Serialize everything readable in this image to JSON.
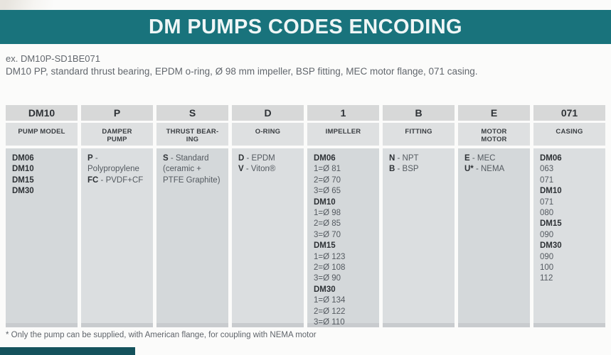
{
  "title": "DM PUMPS CODES ENCODING",
  "intro": {
    "example_code": "ex. DM10P-SD1BE071",
    "example_description": "DM10 PP, standard thrust bearing, EPDM o-ring, Ø 98 mm impeller, BSP fitting, MEC motor flange, 071 casing."
  },
  "table": {
    "columns": [
      {
        "code": "DM10",
        "label": "PUMP MODEL",
        "items": [
          [
            "DM06",
            ""
          ],
          [
            "DM10",
            ""
          ],
          [
            "DM15",
            ""
          ],
          [
            "DM30",
            ""
          ]
        ]
      },
      {
        "code": "P",
        "label": "DAMPER\nPUMP",
        "items": [
          [
            "P",
            "- Polypropylene"
          ],
          [
            "FC",
            "- PVDF+CF"
          ]
        ]
      },
      {
        "code": "S",
        "label": "THRUST BEAR-\nING",
        "items": [
          [
            "S",
            "- Standard"
          ],
          [
            "",
            "(ceramic +"
          ],
          [
            "",
            "PTFE Graphite)"
          ]
        ]
      },
      {
        "code": "D",
        "label": "O-RING",
        "items": [
          [
            "D",
            "- EPDM"
          ],
          [
            "V",
            "- Viton®"
          ]
        ]
      },
      {
        "code": "1",
        "label": "IMPELLER",
        "items": [
          [
            "DM06",
            ""
          ],
          [
            "",
            "1=Ø 81"
          ],
          [
            "",
            "2=Ø 70"
          ],
          [
            "",
            "3=Ø 65"
          ],
          [
            "DM10",
            ""
          ],
          [
            "",
            "1=Ø 98"
          ],
          [
            "",
            "2=Ø 85"
          ],
          [
            "",
            "3=Ø 70"
          ],
          [
            "DM15",
            ""
          ],
          [
            "",
            "1=Ø 123"
          ],
          [
            "",
            "2=Ø 108"
          ],
          [
            "",
            "3=Ø 90"
          ],
          [
            "DM30",
            ""
          ],
          [
            "",
            "1=Ø 134"
          ],
          [
            "",
            "2=Ø 122"
          ],
          [
            "",
            "3=Ø 110"
          ]
        ]
      },
      {
        "code": "B",
        "label": "FITTING",
        "items": [
          [
            "N",
            "- NPT"
          ],
          [
            "B",
            "- BSP"
          ]
        ]
      },
      {
        "code": "E",
        "label": "MOTOR\nMOTOR",
        "items": [
          [
            "E",
            "- MEC"
          ],
          [
            "U*",
            "- NEMA"
          ]
        ]
      },
      {
        "code": "071",
        "label": "CASING",
        "items": [
          [
            "DM06",
            ""
          ],
          [
            "",
            "063"
          ],
          [
            "",
            "071"
          ],
          [
            "DM10",
            ""
          ],
          [
            "",
            "071"
          ],
          [
            "",
            "080"
          ],
          [
            "DM15",
            ""
          ],
          [
            "",
            "090"
          ],
          [
            "DM30",
            ""
          ],
          [
            "",
            "090"
          ],
          [
            "",
            "100"
          ],
          [
            "",
            "112"
          ]
        ]
      }
    ]
  },
  "footnote": "* Only the pump can be supplied, with American flange, for coupling with NEMA motor",
  "colors": {
    "accent_teal": "#19737c",
    "bottom_bar_teal": "#14525c",
    "code_header_gray": "#d7d8d8",
    "label_header_gray": "#dee0e1",
    "body_cell_gray": "#d9dcde"
  }
}
